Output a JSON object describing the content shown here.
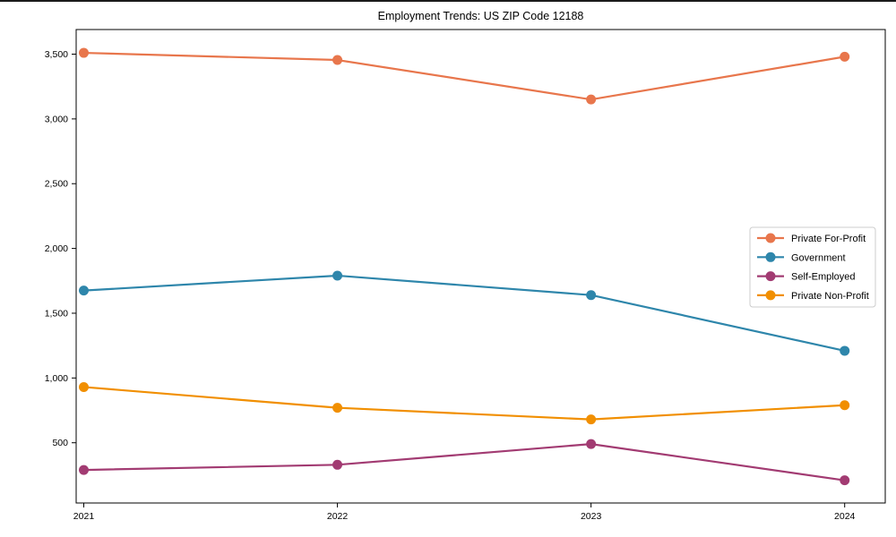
{
  "chart_data": {
    "type": "line",
    "title": "Employment Trends: US ZIP Code 12188",
    "xlabel": "",
    "ylabel": "",
    "x": [
      2021,
      2022,
      2023,
      2024
    ],
    "x_tick_labels": [
      "2021",
      "2022",
      "2023",
      "2024"
    ],
    "y_ticks": [
      500,
      1000,
      1500,
      2000,
      2500,
      3000,
      3500
    ],
    "y_tick_labels": [
      "500",
      "1,000",
      "1,500",
      "2,000",
      "2,500",
      "3,000",
      "3,500"
    ],
    "xlim": [
      2020.97,
      2024.16
    ],
    "ylim": [
      35,
      3690
    ],
    "grid": false,
    "legend_position": "center-right",
    "series": [
      {
        "name": "Private For-Profit",
        "color": "#e8764c",
        "values": [
          3510,
          3455,
          3150,
          3480
        ]
      },
      {
        "name": "Government",
        "color": "#2e86ab",
        "values": [
          1675,
          1790,
          1640,
          1210
        ]
      },
      {
        "name": "Self-Employed",
        "color": "#a23b72",
        "values": [
          290,
          330,
          490,
          210
        ]
      },
      {
        "name": "Private Non-Profit",
        "color": "#f18f01",
        "values": [
          930,
          770,
          680,
          790
        ]
      }
    ],
    "frame_color": "#000000",
    "legend_border_color": "#cccccc",
    "background_color": "#ffffff"
  }
}
